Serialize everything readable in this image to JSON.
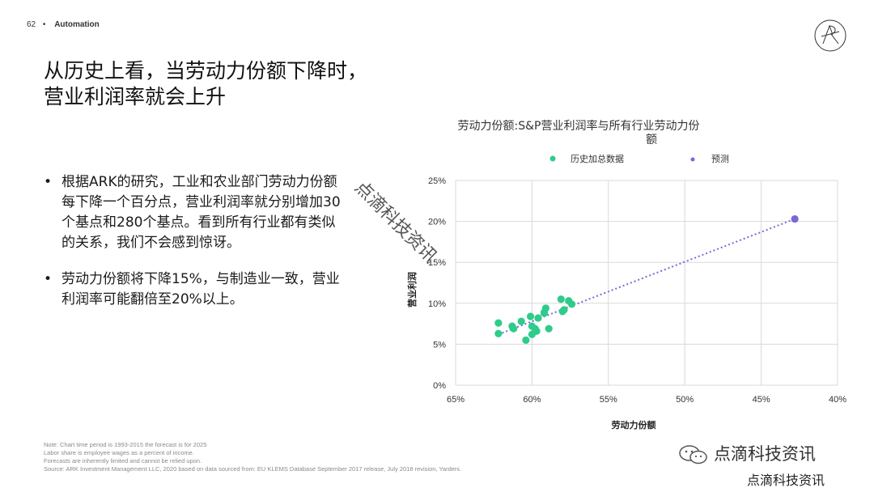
{
  "header": {
    "page_number": "62",
    "separator": "•",
    "section": "Automation"
  },
  "headline": {
    "line1": "从历史上看，当劳动力份额下降时，",
    "line2": "营业利润率就会上升"
  },
  "bullets": [
    {
      "marker": "•",
      "text": "根据ARK的研究，工业和农业部门劳动力份额每下降一个百分点，营业利润率就分别增加30个基点和280个基点。看到所有行业都有类似的关系，我们不会感到惊讶。"
    },
    {
      "marker": "•",
      "text": "劳动力份额将下降15%，与制造业一致，营业利润率可能翻倍至20%以上。"
    }
  ],
  "notes": [
    "Note: Chart time period is 1993-2015 the forecast is for 2025",
    "Labor share is employee wages as a percent of income.",
    "Forecasts are inherently limited and cannot be relied upon.",
    "Source: ARK Investment Management LLC, 2020 based on data sourced from: EU KLEMS Database September 2017 release, July 2018 revision, Yardeni."
  ],
  "watermark": {
    "diagonal": "点滴科技资讯",
    "wechat_label": "点滴科技资讯",
    "footer": "点滴科技资讯"
  },
  "colors": {
    "historical": "#2ecc8a",
    "forecast": "#7b68d8",
    "trend": "#7b68d8",
    "grid": "#d9d9d9"
  },
  "icons": {
    "logo": "ark-logo-icon",
    "wechat": "wechat-icon"
  },
  "chart_data": {
    "type": "scatter",
    "title_line1": "劳动力份额:S&P营业利润率与所有行业劳动力份",
    "title_line2": "额",
    "xlabel": "劳动力份额",
    "ylabel": "营业利润",
    "xlim": [
      65,
      40
    ],
    "ylim": [
      0,
      25
    ],
    "x_reversed": true,
    "x_ticks": [
      "65%",
      "60%",
      "55%",
      "50%",
      "45%",
      "40%"
    ],
    "y_ticks": [
      "0%",
      "5%",
      "10%",
      "15%",
      "20%",
      "25%"
    ],
    "grid": true,
    "legend_position": "top",
    "series": [
      {
        "name": "历史加总数据",
        "points": [
          [
            62.2,
            7.6
          ],
          [
            62.2,
            6.3
          ],
          [
            61.3,
            7.2
          ],
          [
            61.2,
            6.9
          ],
          [
            60.7,
            7.8
          ],
          [
            60.4,
            5.5
          ],
          [
            60.1,
            8.4
          ],
          [
            60.0,
            6.2
          ],
          [
            60.0,
            7.2
          ],
          [
            59.8,
            6.9
          ],
          [
            59.7,
            6.6
          ],
          [
            59.6,
            8.2
          ],
          [
            59.2,
            8.8
          ],
          [
            59.2,
            8.9
          ],
          [
            59.1,
            9.4
          ],
          [
            58.9,
            6.9
          ],
          [
            58.1,
            10.5
          ],
          [
            58.0,
            9.0
          ],
          [
            57.9,
            9.2
          ],
          [
            57.6,
            10.3
          ],
          [
            57.4,
            9.9
          ]
        ]
      },
      {
        "name": "预测",
        "points": [
          [
            42.8,
            20.3
          ]
        ]
      }
    ],
    "trendline": {
      "from": [
        62.2,
        6.2
      ],
      "to": [
        42.8,
        20.3
      ]
    }
  }
}
